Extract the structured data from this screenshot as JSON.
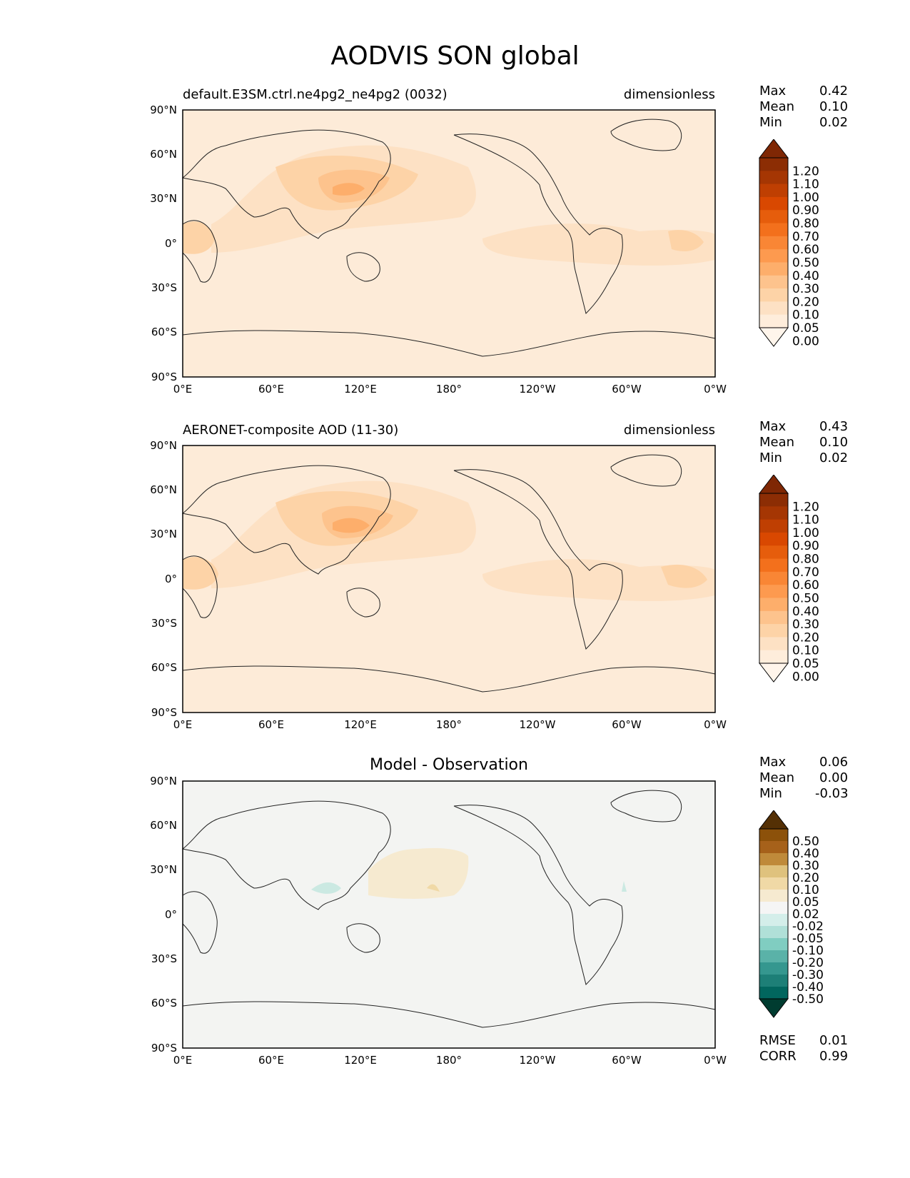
{
  "figure_title": "AODVIS SON global",
  "axes": {
    "lat_ticks": [
      "90°N",
      "60°N",
      "30°N",
      "0°",
      "30°S",
      "60°S",
      "90°S"
    ],
    "lon_ticks": [
      "0°E",
      "60°E",
      "120°E",
      "180°",
      "120°W",
      "60°W",
      "0°W"
    ]
  },
  "panels": [
    {
      "title_left": "default.E3SM.ctrl.ne4pg2_ne4pg2 (0032)",
      "title_right": "dimensionless",
      "title_center": "",
      "stats": [
        {
          "label": "Max",
          "value": "0.42"
        },
        {
          "label": "Mean",
          "value": "0.10"
        },
        {
          "label": "Min",
          "value": "0.02"
        }
      ],
      "colorbar_labels": [
        "1.20",
        "1.10",
        "1.00",
        "0.90",
        "0.80",
        "0.70",
        "0.60",
        "0.50",
        "0.40",
        "0.30",
        "0.20",
        "0.10",
        "0.05",
        "0.00"
      ],
      "colorbar_colors": [
        "#fff5eb",
        "#feeddb",
        "#fde1c4",
        "#fdd3a7",
        "#fdc38d",
        "#fdae6b",
        "#fd9a4f",
        "#f98635",
        "#f3701c",
        "#e65d0c",
        "#d94801",
        "#bf3f02",
        "#a53603",
        "#8c2d04",
        "#7f2704"
      ],
      "background_color": "#fdebd8"
    },
    {
      "title_left": "AERONET-composite AOD (11-30)",
      "title_right": "dimensionless",
      "title_center": "",
      "stats": [
        {
          "label": "Max",
          "value": "0.43"
        },
        {
          "label": "Mean",
          "value": "0.10"
        },
        {
          "label": "Min",
          "value": "0.02"
        }
      ],
      "colorbar_labels": [
        "1.20",
        "1.10",
        "1.00",
        "0.90",
        "0.80",
        "0.70",
        "0.60",
        "0.50",
        "0.40",
        "0.30",
        "0.20",
        "0.10",
        "0.05",
        "0.00"
      ],
      "colorbar_colors": [
        "#fff5eb",
        "#feeddb",
        "#fde1c4",
        "#fdd3a7",
        "#fdc38d",
        "#fdae6b",
        "#fd9a4f",
        "#f98635",
        "#f3701c",
        "#e65d0c",
        "#d94801",
        "#bf3f02",
        "#a53603",
        "#8c2d04",
        "#7f2704"
      ],
      "background_color": "#fdebd8"
    },
    {
      "title_left": "",
      "title_right": "",
      "title_center": "Model - Observation",
      "stats": [
        {
          "label": "Max",
          "value": "0.06"
        },
        {
          "label": "Mean",
          "value": "0.00"
        },
        {
          "label": "Min",
          "value": "-0.03"
        }
      ],
      "colorbar_labels": [
        "0.50",
        "0.40",
        "0.30",
        "0.20",
        "0.10",
        "0.05",
        "0.02",
        "-0.02",
        "-0.05",
        "-0.10",
        "-0.20",
        "-0.30",
        "-0.40",
        "-0.50"
      ],
      "colorbar_colors": [
        "#003c30",
        "#01665e",
        "#1d7f77",
        "#35978f",
        "#5ab2a8",
        "#80cdc1",
        "#b0e0d8",
        "#d4eeea",
        "#f5f5f5",
        "#f6ead0",
        "#f0d9a6",
        "#dfc27d",
        "#bf8a3a",
        "#a6611a",
        "#8c510a",
        "#543005"
      ],
      "background_color": "#f3f4f2",
      "error_stats": [
        {
          "label": "RMSE",
          "value": "0.01"
        },
        {
          "label": "CORR",
          "value": "0.99"
        }
      ]
    }
  ],
  "colors": {
    "coastline": "#222222",
    "aod_light": "#fde1c4",
    "aod_mid": "#fdd3a7",
    "aod_high": "#fdc38d",
    "aod_peak": "#fdae6b",
    "diff_pos": "#f6ead0",
    "diff_pos2": "#f0d9a6",
    "diff_neg": "#cbe9e2"
  }
}
